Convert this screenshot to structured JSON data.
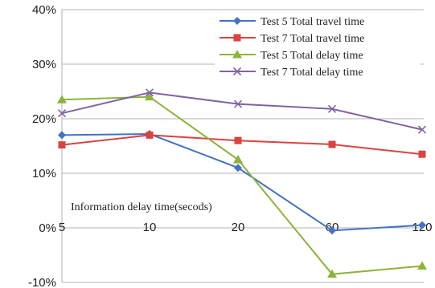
{
  "chart_data": {
    "type": "line",
    "categories": [
      "5",
      "10",
      "20",
      "60",
      "120"
    ],
    "y_ticks": [
      "40%",
      "30%",
      "20%",
      "10%",
      "0%",
      "-10%"
    ],
    "ylim": [
      -10,
      40
    ],
    "y_unit": "percent",
    "grid": "horizontal",
    "legend_position": "top-right",
    "annotation": "Information delay time(secods)",
    "series": [
      {
        "name": "Test 5 Total travel time",
        "color": "#4472c4",
        "marker": "diamond",
        "values": [
          17,
          17.2,
          11,
          -0.5,
          0.5
        ]
      },
      {
        "name": "Test 7 Total travel time",
        "color": "#d9443f",
        "marker": "square",
        "values": [
          15.2,
          17,
          16,
          15.3,
          13.5
        ]
      },
      {
        "name": "Test 5 Total delay time",
        "color": "#8db33a",
        "marker": "triangle",
        "values": [
          23.5,
          24,
          12.5,
          -8.5,
          -7
        ]
      },
      {
        "name": "Test 7 Total delay time",
        "color": "#8064a2",
        "marker": "x",
        "values": [
          21,
          24.8,
          22.7,
          21.8,
          18
        ]
      }
    ]
  }
}
